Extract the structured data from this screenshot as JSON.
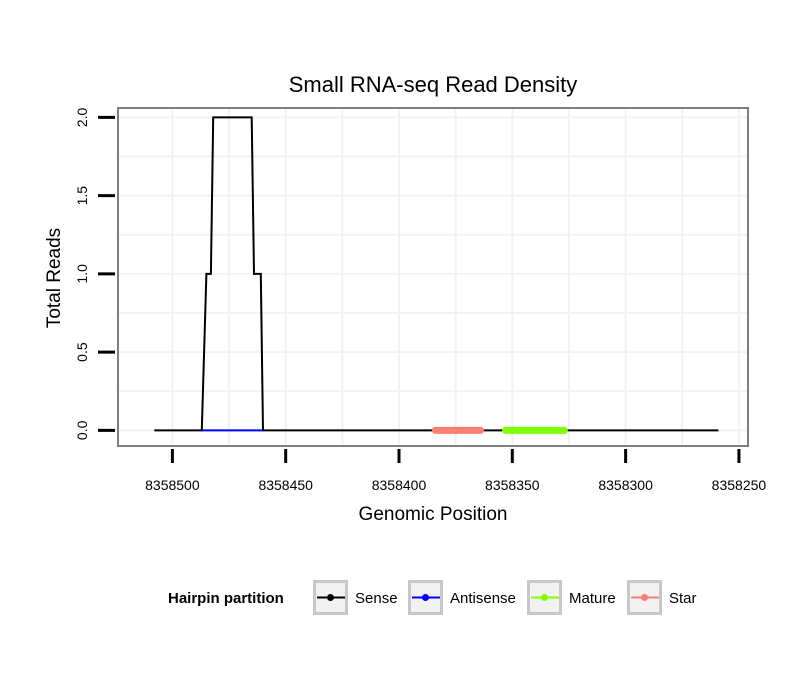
{
  "chart_data": {
    "type": "line",
    "title": "Small RNA-seq Read Density",
    "xlabel": "Genomic Position",
    "ylabel": "Total Reads",
    "x_reversed": true,
    "xlim": [
      8358524,
      8358246
    ],
    "ylim": [
      -0.1,
      2.06
    ],
    "x_ticks": [
      8358500,
      8358450,
      8358400,
      8358350,
      8358300,
      8358250
    ],
    "x_tick_labels": [
      "8358500",
      "8358450",
      "8358400",
      "8358350",
      "8358300",
      "8358250"
    ],
    "y_ticks": [
      0.0,
      0.5,
      1.0,
      1.5,
      2.0
    ],
    "y_tick_labels": [
      "0.0",
      "0.5",
      "1.0",
      "1.5",
      "2.0"
    ],
    "grid": true,
    "series": [
      {
        "name": "Sense",
        "color": "#000000",
        "points": [
          [
            8358508,
            0
          ],
          [
            8358487,
            0
          ],
          [
            8358485,
            1
          ],
          [
            8358483,
            1
          ],
          [
            8358482,
            2
          ],
          [
            8358465,
            2
          ],
          [
            8358464,
            1
          ],
          [
            8358461,
            1
          ],
          [
            8358460,
            0
          ],
          [
            8358259,
            0
          ]
        ]
      },
      {
        "name": "Antisense",
        "color": "#0000ff",
        "points": [
          [
            8358487,
            0
          ],
          [
            8358460,
            0
          ]
        ]
      },
      {
        "name": "Mature",
        "color": "#7fff00",
        "points": [
          [
            8358353,
            0
          ],
          [
            8358327,
            0
          ]
        ]
      },
      {
        "name": "Star",
        "color": "#fa8072",
        "points": [
          [
            8358384,
            0
          ],
          [
            8358364,
            0
          ]
        ]
      }
    ],
    "legend": {
      "title": "Hairpin partition",
      "position": "bottom",
      "entries": [
        {
          "label": "Sense",
          "color": "#000000"
        },
        {
          "label": "Antisense",
          "color": "#0000ff"
        },
        {
          "label": "Mature",
          "color": "#7fff00"
        },
        {
          "label": "Star",
          "color": "#fa8072"
        }
      ]
    }
  }
}
